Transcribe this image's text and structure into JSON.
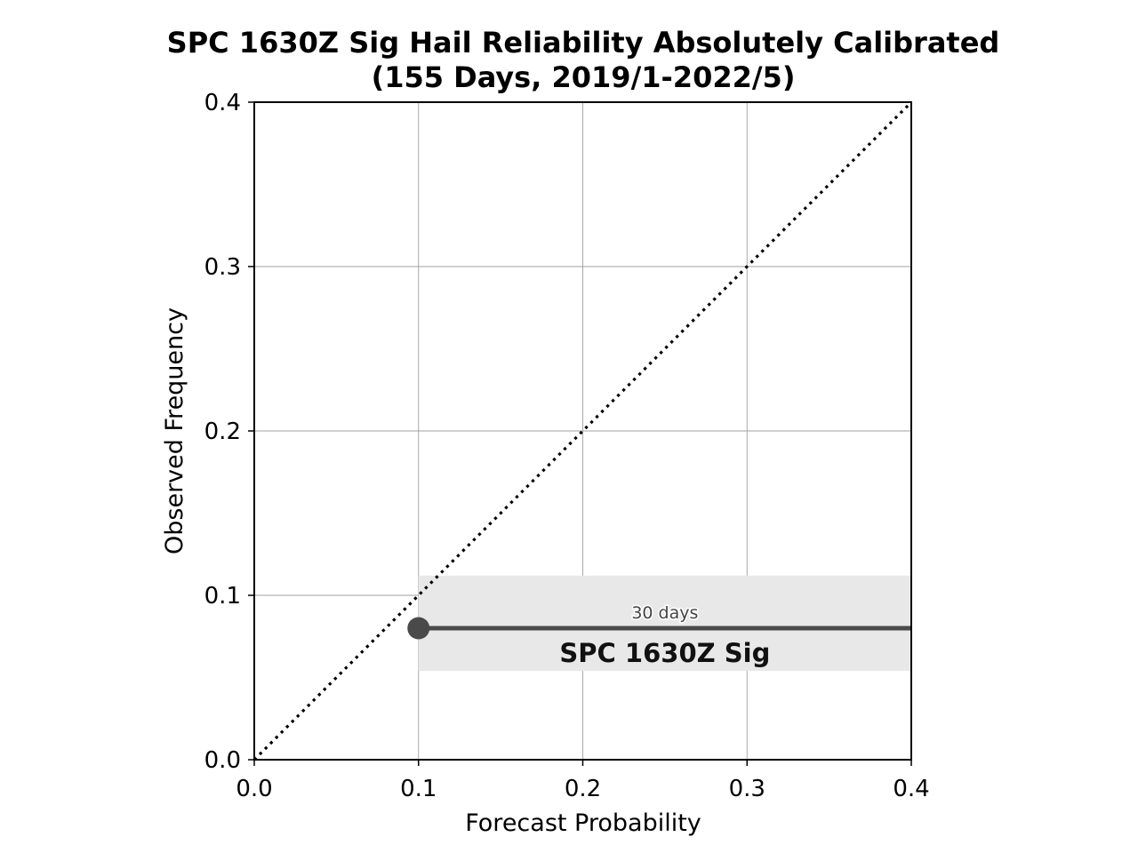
{
  "chart_data": {
    "type": "line",
    "title": "SPC 1630Z Sig Hail Reliability Absolutely Calibrated",
    "subtitle": "(155 Days, 2019/1-2022/5)",
    "xlabel": "Forecast Probability",
    "ylabel": "Observed Frequency",
    "xlim": [
      0.0,
      0.4
    ],
    "ylim": [
      0.0,
      0.4
    ],
    "xticks": [
      "0.0",
      "0.1",
      "0.2",
      "0.3",
      "0.4"
    ],
    "yticks": [
      "0.0",
      "0.1",
      "0.2",
      "0.3",
      "0.4"
    ],
    "grid": true,
    "reference_line": {
      "style": "dotted",
      "from": [
        0.0,
        0.0
      ],
      "to": [
        0.4,
        0.4
      ],
      "color": "#000000"
    },
    "series": [
      {
        "label": "SPC 1630Z Sig",
        "count_label": "30 days",
        "x_start": 0.1,
        "x_end": 0.4,
        "y": 0.08,
        "band": [
          0.054,
          0.112
        ],
        "color": "#4a4a4a",
        "band_color": "#e8e8e8"
      }
    ]
  }
}
